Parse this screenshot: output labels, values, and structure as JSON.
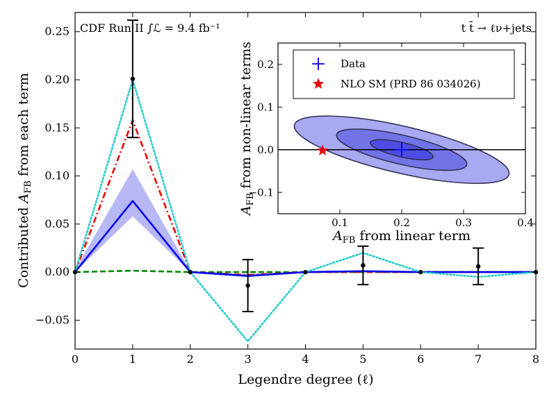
{
  "chart_data": [
    {
      "type": "line",
      "name": "main",
      "xlabel": "Legendre degree (ℓ)",
      "ylabel": "Contributed A_FB from each term",
      "ylabel_parts": {
        "pre": "Contributed ",
        "A": "A",
        "sub": "FB",
        "post": " from each term"
      },
      "xlim": [
        0,
        8
      ],
      "ylim": [
        -0.08,
        0.27
      ],
      "x_ticks": [
        0,
        1,
        2,
        3,
        4,
        5,
        6,
        7,
        8
      ],
      "y_ticks": [
        -0.05,
        0.0,
        0.05,
        0.1,
        0.15,
        0.2,
        0.25
      ],
      "y_tick_labels": [
        "−0.05",
        "0.00",
        "0.05",
        "0.10",
        "0.15",
        "0.20",
        "0.25"
      ],
      "annotation_left": "CDF Run II ∫ℒ = 9.4 fb⁻¹",
      "annotation_right": "t t̄ → ℓν+jets",
      "band": {
        "x": [
          0,
          1,
          2,
          3,
          4,
          5,
          6,
          7,
          8
        ],
        "lower": [
          0.0,
          0.058,
          0.0,
          -0.005,
          0.0,
          0.0005,
          0.0,
          -0.001,
          0.0
        ],
        "upper": [
          0.002,
          0.107,
          0.001,
          -0.002,
          0.001,
          0.002,
          0.0005,
          0.001,
          0.0005
        ],
        "color": "#8888ee"
      },
      "series": [
        {
          "name": "central",
          "x": [
            0,
            1,
            2,
            3,
            4,
            5,
            6,
            7,
            8
          ],
          "values": [
            0.0,
            0.074,
            0.0,
            -0.004,
            0.0,
            0.001,
            0.0,
            0.0,
            0.0
          ],
          "color": "#0000ee",
          "style": "solid"
        },
        {
          "name": "dashdot",
          "x": [
            0,
            1,
            2,
            3,
            4,
            5,
            6,
            7,
            8
          ],
          "values": [
            0.0,
            0.158,
            0.0,
            -0.003,
            0.0,
            0.0,
            0.0,
            0.0,
            0.0
          ],
          "color": "#ee0000",
          "style": "dashdot"
        },
        {
          "name": "dashed",
          "x": [
            0,
            1,
            2,
            3,
            4,
            5,
            6,
            7,
            8
          ],
          "values": [
            0.0,
            0.0015,
            0.0,
            0.0,
            0.0,
            0.0,
            0.0,
            0.0,
            0.0
          ],
          "color": "#008800",
          "style": "dashed"
        },
        {
          "name": "dotted",
          "x": [
            0,
            1,
            2,
            3,
            4,
            5,
            6,
            7,
            8
          ],
          "values": [
            0.0,
            0.2,
            0.0,
            -0.072,
            0.0,
            0.02,
            0.0,
            -0.005,
            0.0
          ],
          "color": "#22cccc",
          "style": "dotted"
        }
      ],
      "data_points": {
        "x": [
          0,
          1,
          2,
          3,
          4,
          5,
          6,
          7,
          8
        ],
        "y": [
          0.0,
          0.201,
          0.0,
          -0.014,
          0.0,
          0.007,
          0.0,
          0.006,
          0.0
        ],
        "err": [
          0,
          0.061,
          0,
          0.027,
          0,
          0.02,
          0,
          0.019,
          0
        ]
      }
    },
    {
      "type": "scatter",
      "name": "inset",
      "xlabel_parts": {
        "A": "A",
        "sub": "FB",
        "post": " from linear term"
      },
      "ylabel_parts": {
        "A": "A",
        "sub": "FB",
        "post": " from non-linear terms"
      },
      "xlim": [
        0,
        0.4
      ],
      "ylim": [
        -0.15,
        0.25
      ],
      "x_ticks": [
        0.1,
        0.2,
        0.3,
        0.4
      ],
      "x_tick_labels": [
        "0.1",
        "0.2",
        "0.3",
        "0.4"
      ],
      "y_ticks": [
        -0.1,
        0.0,
        0.1,
        0.2
      ],
      "y_tick_labels": [
        "−0.1",
        "0.0",
        "0.1",
        "0.2"
      ],
      "data_point": {
        "x": 0.2,
        "y": 0.0,
        "color": "#0000ee"
      },
      "sm_point": {
        "x": 0.072,
        "y": -0.002,
        "color": "#ee0000"
      },
      "contours": [
        {
          "cx": 0.2,
          "cy": 0.0,
          "rx": 0.178,
          "ry": 0.055,
          "angle_deg": 13,
          "fill": "#a9a9f2"
        },
        {
          "cx": 0.2,
          "cy": 0.0,
          "rx": 0.108,
          "ry": 0.034,
          "angle_deg": 13,
          "fill": "#7373e8"
        },
        {
          "cx": 0.2,
          "cy": 0.0,
          "rx": 0.052,
          "ry": 0.017,
          "angle_deg": 13,
          "fill": "#4d4de4"
        }
      ],
      "legend": [
        {
          "label": "Data",
          "marker": "plus",
          "color": "#0000ee"
        },
        {
          "label": "NLO SM (PRD 86 034026)",
          "marker": "star",
          "color": "#ee0000"
        }
      ]
    }
  ]
}
